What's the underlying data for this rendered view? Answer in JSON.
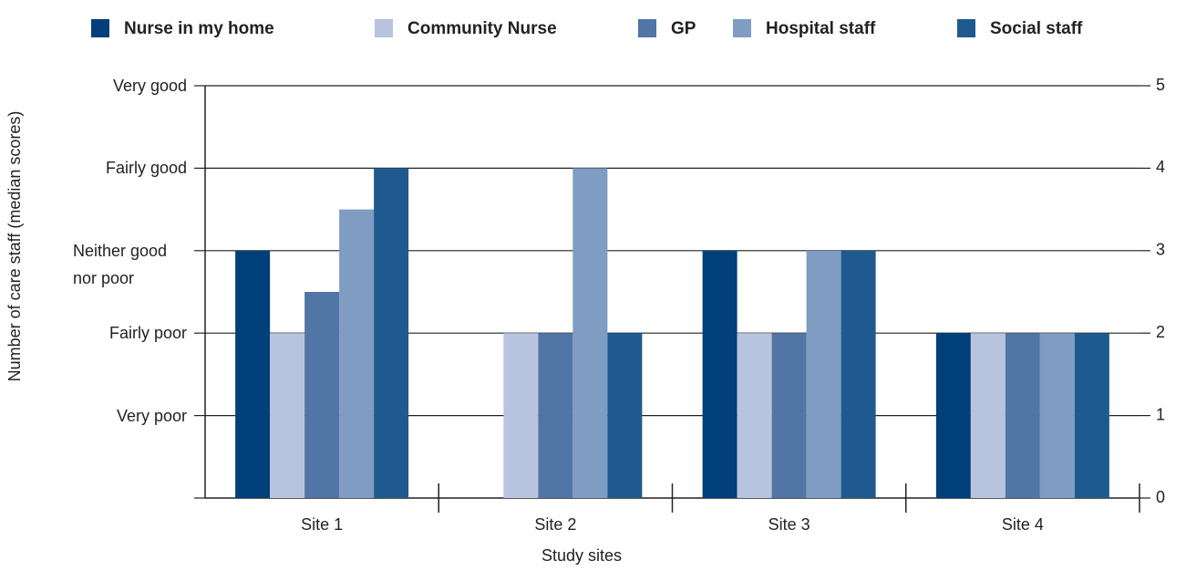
{
  "chart_data": {
    "type": "bar",
    "y_label": "Number of care staff (median scores)",
    "x_label": "Study sites",
    "categories": [
      "Site 1",
      "Site 2",
      "Site 3",
      "Site 4"
    ],
    "series": [
      {
        "name": "Nurse in my home",
        "color": "#003f7a",
        "values": [
          3,
          null,
          3,
          2
        ]
      },
      {
        "name": "Community Nurse",
        "color": "#b8c4de",
        "values": [
          2,
          2,
          2,
          2
        ]
      },
      {
        "name": "GP",
        "color": "#5175a5",
        "values": [
          2.5,
          2,
          2,
          2
        ]
      },
      {
        "name": "Hospital staff",
        "color": "#7f9cc2",
        "values": [
          3.5,
          4,
          3,
          2
        ]
      },
      {
        "name": "Social staff",
        "color": "#1f5a8e",
        "values": [
          4,
          2,
          3,
          2
        ]
      }
    ],
    "ylim": [
      0,
      5
    ],
    "yticks": [
      {
        "value": 1,
        "label": "Very poor"
      },
      {
        "value": 2,
        "label": "Fairly poor"
      },
      {
        "value": 3,
        "label": "Neither good nor poor"
      },
      {
        "value": 4,
        "label": "Fairly good"
      },
      {
        "value": 5,
        "label": "Very good"
      }
    ],
    "y2lim": [
      0,
      5
    ],
    "y2ticks": [
      0,
      1,
      2,
      3,
      4,
      5
    ],
    "grid": true,
    "legend": "top"
  }
}
